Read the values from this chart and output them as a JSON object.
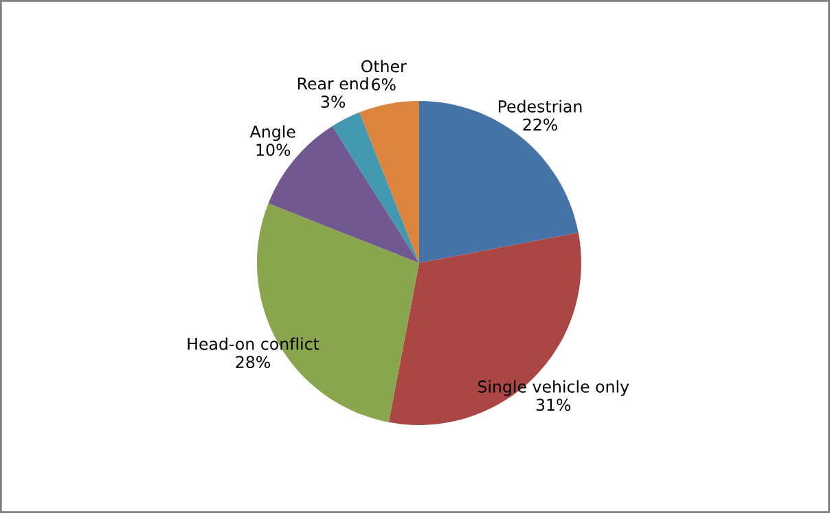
{
  "chart_data": {
    "type": "pie",
    "categories": [
      "Pedestrian",
      "Single vehicle only",
      "Head-on conflict",
      "Angle",
      "Rear end",
      "Other"
    ],
    "values": [
      22,
      31,
      28,
      10,
      3,
      6
    ],
    "value_labels": [
      "22%",
      "31%",
      "28%",
      "10%",
      "3%",
      "6%"
    ],
    "colors": [
      "#4572a7",
      "#aa4643",
      "#89a54e",
      "#71588f",
      "#4198af",
      "#db843d"
    ],
    "legend": false
  }
}
